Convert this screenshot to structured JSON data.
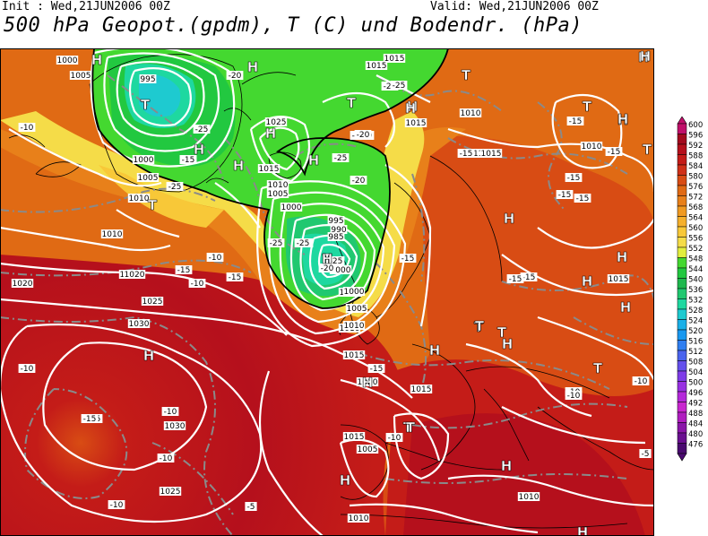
{
  "header": {
    "init_label": "Init : Wed,21JUN2006 00Z",
    "valid_label": "Valid: Wed,21JUN2006 00Z",
    "title": "500 hPa Geopot.(gpdm), T (C) und Bodendr. (hPa)"
  },
  "legend": {
    "levels": [
      "600",
      "596",
      "592",
      "588",
      "584",
      "580",
      "576",
      "572",
      "568",
      "564",
      "560",
      "556",
      "552",
      "548",
      "544",
      "540",
      "536",
      "532",
      "528",
      "524",
      "520",
      "516",
      "512",
      "508",
      "504",
      "500",
      "496",
      "492",
      "488",
      "484",
      "480",
      "476"
    ],
    "colors": [
      "#c0106a",
      "#a30a1e",
      "#b5101c",
      "#c41c18",
      "#cf3018",
      "#d84c14",
      "#e06a14",
      "#e8801a",
      "#f09a22",
      "#f5b02c",
      "#f8c838",
      "#f5dc48",
      "#e2ee3e",
      "#44d830",
      "#22c840",
      "#1eb84e",
      "#20c870",
      "#1ed8a0",
      "#1ecad0",
      "#1ab0e8",
      "#1898f0",
      "#2f7ef0",
      "#4a64ee",
      "#6450ec",
      "#7e3ce8",
      "#9830e2",
      "#b428da",
      "#c826cf",
      "#b01ec0",
      "#8a16a8",
      "#6a1090",
      "#4a0a70"
    ]
  },
  "map_labels": {
    "pressure": [
      "1000",
      "1005",
      "995",
      "1000",
      "1005",
      "1010",
      "1010",
      "1015",
      "1020",
      "1025",
      "1015",
      "1010",
      "1005",
      "1000",
      "995",
      "990",
      "985",
      "1000",
      "1005",
      "1010",
      "1015",
      "1015",
      "1015",
      "1020",
      "1015",
      "1015",
      "1010",
      "1030",
      "1030",
      "1025",
      "1020",
      "1025",
      "1010",
      "1015",
      "1015",
      "1015",
      "1010",
      "1010",
      "1015",
      "1005",
      "1000",
      "1010",
      "1005",
      "1000",
      "1015"
    ],
    "temperature": [
      "-20",
      "-25",
      "-20",
      "-25",
      "-25",
      "-20",
      "-25",
      "-25",
      "-15",
      "-20",
      "-25",
      "-20",
      "-25",
      "-15",
      "-15",
      "-15",
      "-10",
      "-10",
      "-15",
      "-15",
      "-10",
      "-10",
      "-10",
      "-15",
      "-15",
      "-15",
      "-15",
      "-10",
      "-10",
      "-15",
      "-10",
      "-10",
      "-5",
      "-15",
      "-5",
      "-10",
      "-20",
      "-15",
      "-10",
      "-25",
      "-20",
      "-15",
      "-20",
      "-15"
    ],
    "symbols": [
      "H",
      "T",
      "H",
      "H",
      "H",
      "H",
      "T",
      "H",
      "T",
      "H",
      "T",
      "H",
      "T",
      "H",
      "H",
      "T",
      "H",
      "H",
      "H",
      "T",
      "H",
      "T",
      "H",
      "H",
      "T",
      "T",
      "H",
      "H",
      "H",
      "H",
      "T",
      "H",
      "H",
      "T",
      "T",
      "H",
      "H"
    ]
  }
}
